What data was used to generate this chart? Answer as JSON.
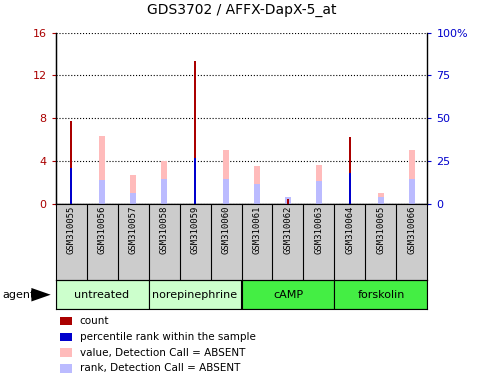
{
  "title": "GDS3702 / AFFX-DapX-5_at",
  "samples": [
    "GSM310055",
    "GSM310056",
    "GSM310057",
    "GSM310058",
    "GSM310059",
    "GSM310060",
    "GSM310061",
    "GSM310062",
    "GSM310063",
    "GSM310064",
    "GSM310065",
    "GSM310066"
  ],
  "count_values": [
    7.7,
    0,
    0,
    0,
    13.3,
    0,
    0,
    0.4,
    0,
    6.2,
    0,
    0
  ],
  "percentile_rank": [
    3.3,
    0,
    0,
    0,
    4.3,
    0,
    0,
    0,
    0,
    2.9,
    0,
    0
  ],
  "absent_value": [
    0,
    6.3,
    2.7,
    4.0,
    0,
    5.0,
    3.5,
    0,
    3.6,
    0,
    1.0,
    5.0
  ],
  "absent_rank": [
    0,
    2.2,
    1.0,
    2.3,
    0,
    2.3,
    1.8,
    0.6,
    2.1,
    0,
    0.6,
    2.3
  ],
  "group_data": [
    {
      "label": "untreated",
      "start": 0,
      "end": 2,
      "color": "#ccffcc"
    },
    {
      "label": "norepinephrine",
      "start": 3,
      "end": 5,
      "color": "#ccffcc"
    },
    {
      "label": "cAMP",
      "start": 6,
      "end": 8,
      "color": "#44ee44"
    },
    {
      "label": "forskolin",
      "start": 9,
      "end": 11,
      "color": "#44ee44"
    }
  ],
  "ylim_left": [
    0,
    16
  ],
  "ylim_right": [
    0,
    100
  ],
  "yticks_left": [
    0,
    4,
    8,
    12,
    16
  ],
  "ytick_labels_left": [
    "0",
    "4",
    "8",
    "12",
    "16"
  ],
  "yticks_right": [
    0,
    25,
    50,
    75,
    100
  ],
  "ytick_labels_right": [
    "0",
    "25",
    "50",
    "75",
    "100%"
  ],
  "color_count": "#aa0000",
  "color_rank": "#0000cc",
  "color_absent_value": "#ffbbbb",
  "color_absent_rank": "#bbbbff",
  "sample_box_color": "#cccccc",
  "legend_colors": [
    "#aa0000",
    "#0000cc",
    "#ffbbbb",
    "#bbbbff"
  ],
  "legend_labels": [
    "count",
    "percentile rank within the sample",
    "value, Detection Call = ABSENT",
    "rank, Detection Call = ABSENT"
  ]
}
